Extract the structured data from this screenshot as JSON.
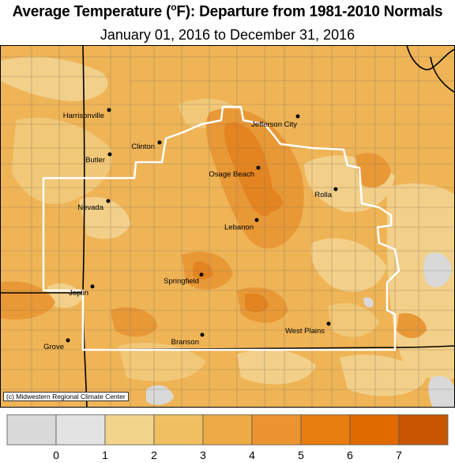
{
  "title_main": "Average Temperature (",
  "title_degree": "o",
  "title_rest": "F): Departure from 1981-2010 Normals",
  "subtitle": "January 01, 2016 to December 31, 2016",
  "credit": "(c) Midwestern Regional Climate Center",
  "cities": [
    {
      "name": "Harrisonville",
      "id": "harrisonville"
    },
    {
      "name": "Jefferson City",
      "id": "jefferson-city"
    },
    {
      "name": "Clinton",
      "id": "clinton"
    },
    {
      "name": "Butler",
      "id": "butler"
    },
    {
      "name": "Osage Beach",
      "id": "osage-beach"
    },
    {
      "name": "Rolla",
      "id": "rolla"
    },
    {
      "name": "Nevada",
      "id": "nevada"
    },
    {
      "name": "Lebanon",
      "id": "lebanon"
    },
    {
      "name": "Springfield",
      "id": "springfield"
    },
    {
      "name": "Joplin",
      "id": "joplin"
    },
    {
      "name": "West Plains",
      "id": "west-plains"
    },
    {
      "name": "Branson",
      "id": "branson"
    },
    {
      "name": "Grove",
      "id": "grove"
    }
  ],
  "legend": {
    "labels": [
      "0",
      "1",
      "2",
      "3",
      "4",
      "5",
      "6",
      "7"
    ],
    "colors": [
      "#d9d9d9",
      "#e3e3e3",
      "#f2d48a",
      "#f0c060",
      "#eeaa45",
      "#ec9530",
      "#e87e10",
      "#e06a00",
      "#c85600"
    ]
  },
  "colors": {
    "base_fill": "#efb456",
    "light_fill": "#f2d08a",
    "dark_fill": "#e99836",
    "darker_fill": "#e48420",
    "gray_fill": "#d9d9d9"
  }
}
